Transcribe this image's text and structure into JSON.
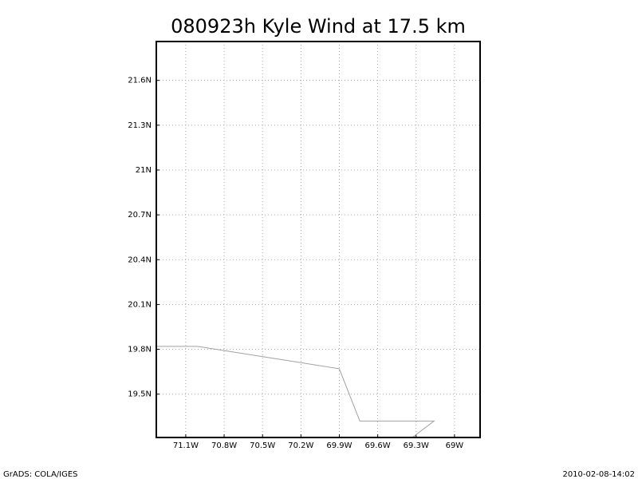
{
  "chart_data": {
    "type": "line",
    "title": "080923h Kyle Wind at 17.5 km",
    "x": [
      -71.33,
      -71.01,
      -69.9,
      -69.74,
      -69.16,
      -69.33
    ],
    "series": [
      {
        "color": "#a0a0a0",
        "values": [
          19.82,
          19.82,
          19.67,
          19.32,
          19.32,
          19.21
        ]
      }
    ],
    "xlim": [
      -71.33,
      -68.8
    ],
    "xticks": [
      {
        "value": -71.1,
        "label": "71.1W"
      },
      {
        "value": -70.8,
        "label": "70.8W"
      },
      {
        "value": -70.5,
        "label": "70.5W"
      },
      {
        "value": -70.2,
        "label": "70.2W"
      },
      {
        "value": -69.9,
        "label": "69.9W"
      },
      {
        "value": -69.6,
        "label": "69.6W"
      },
      {
        "value": -69.3,
        "label": "69.3W"
      },
      {
        "value": -69,
        "label": "69W"
      }
    ],
    "ylim": [
      19.21,
      21.86
    ],
    "yticks": [
      {
        "value": 19.5,
        "label": "19.5N"
      },
      {
        "value": 19.8,
        "label": "19.8N"
      },
      {
        "value": 20.1,
        "label": "20.1N"
      },
      {
        "value": 20.4,
        "label": "20.4N"
      },
      {
        "value": 20.7,
        "label": "20.7N"
      },
      {
        "value": 21,
        "label": "21N"
      },
      {
        "value": 21.3,
        "label": "21.3N"
      },
      {
        "value": 21.6,
        "label": "21.6N"
      }
    ],
    "grid": true,
    "credit": "GrADS: COLA/IGES",
    "timestamp": "2010-02-08-14:02"
  }
}
